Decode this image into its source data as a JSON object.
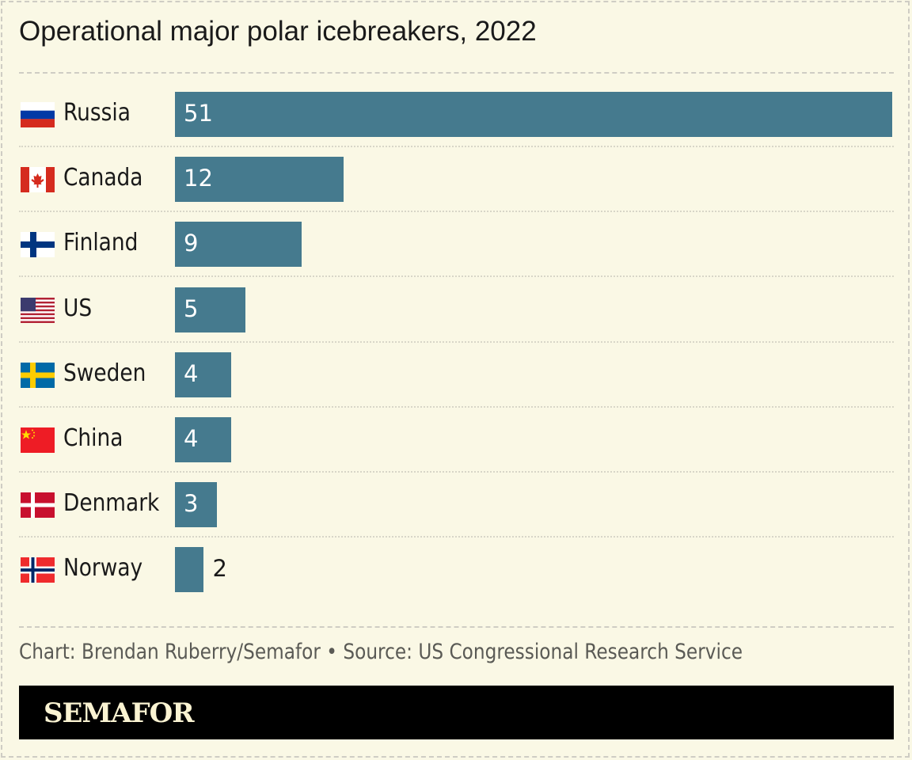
{
  "chart_data": {
    "type": "bar",
    "orientation": "horizontal",
    "title": "Operational major polar icebreakers, 2022",
    "categories": [
      "Russia",
      "Canada",
      "Finland",
      "US",
      "Sweden",
      "China",
      "Denmark",
      "Norway"
    ],
    "values": [
      51,
      12,
      9,
      5,
      4,
      4,
      3,
      2
    ],
    "flags": [
      "russia",
      "canada",
      "finland",
      "us",
      "sweden",
      "china",
      "denmark",
      "norway"
    ],
    "xlim": [
      0,
      51
    ],
    "grid": false,
    "bar_color": "#457a8e"
  },
  "footer": {
    "source": "Chart: Brendan Ruberry/Semafor • Source: US Congressional Research Service",
    "logo": "SEMAFOR"
  }
}
